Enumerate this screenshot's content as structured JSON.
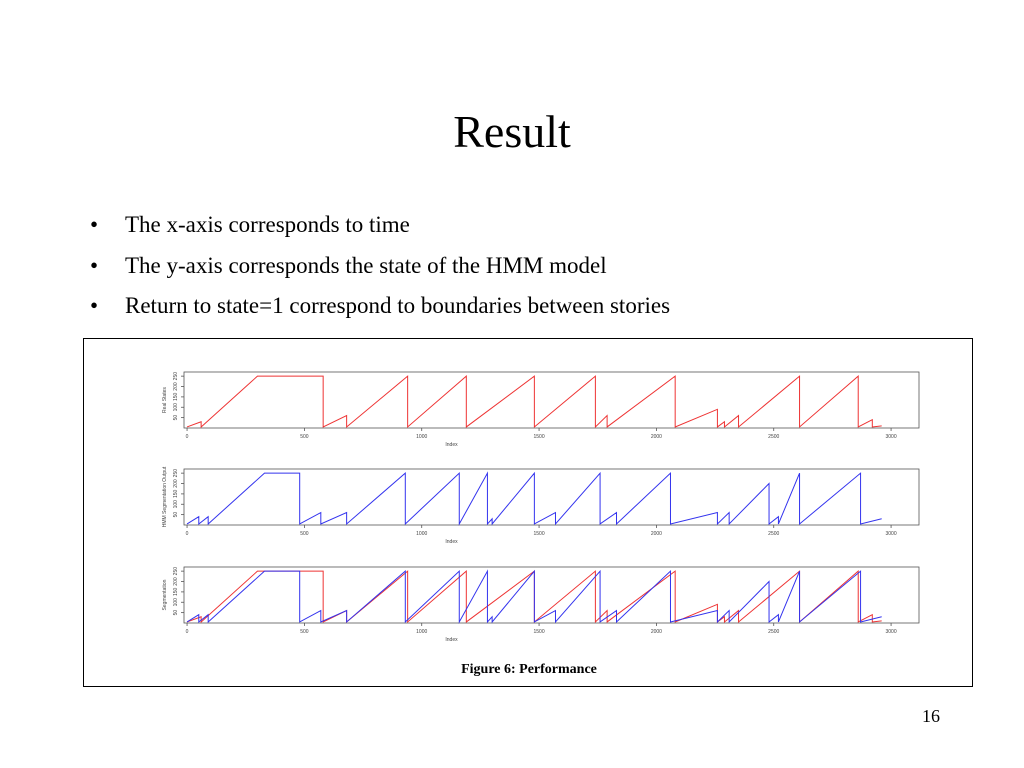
{
  "title": "Result",
  "bullets": [
    "The x-axis corresponds to time",
    "The y-axis corresponds the state of the HMM model",
    "Return to state=1 correspond to boundaries between stories"
  ],
  "figure": {
    "caption": "Figure 6: Performance",
    "panels": [
      {
        "ylabel": "Real States",
        "xlabel": "Index",
        "xlim": [
          -13,
          3119
        ],
        "ylim": [
          0,
          270
        ],
        "xticks": [
          0,
          500,
          1000,
          1500,
          2000,
          2500,
          3000
        ],
        "yticks": [
          50,
          100,
          150,
          200,
          250
        ]
      },
      {
        "ylabel": "HMM Segmentation Output",
        "xlabel": "Index",
        "xlim": [
          -13,
          3119
        ],
        "ylim": [
          0,
          270
        ],
        "xticks": [
          0,
          500,
          1000,
          1500,
          2000,
          2500,
          3000
        ],
        "yticks": [
          50,
          100,
          150,
          200,
          250
        ]
      },
      {
        "ylabel": "Segmentation",
        "xlabel": "Index",
        "xlim": [
          -13,
          3119
        ],
        "ylim": [
          0,
          270
        ],
        "xticks": [
          0,
          500,
          1000,
          1500,
          2000,
          2500,
          3000
        ],
        "yticks": [
          50,
          100,
          150,
          200,
          250
        ]
      }
    ]
  },
  "page_number": "16"
}
